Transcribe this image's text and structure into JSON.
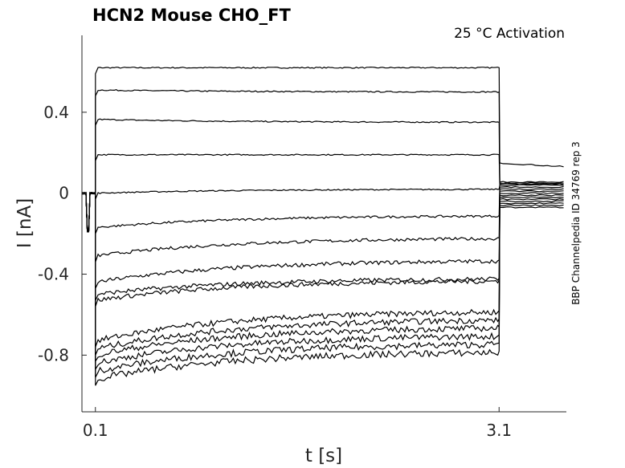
{
  "chart_data": {
    "type": "line",
    "title": "HCN2  Mouse  CHO_FT",
    "subtitle": "25 °C  Activation",
    "xlabel": "t [s]",
    "ylabel": "I [nA]",
    "side_note": "BBP Channelpedia ID 34769 rep 3",
    "xlim": [
      0.0,
      3.6
    ],
    "ylim": [
      -1.08,
      0.78
    ],
    "xticks": [
      0.1,
      3.1
    ],
    "xtick_labels": [
      "0.1",
      "3.1"
    ],
    "yticks": [
      0.4,
      0,
      -0.4,
      -0.8
    ],
    "ytick_labels": [
      "0.4",
      "0",
      "-0.4",
      "-0.8"
    ],
    "grid": false,
    "line_color": "#000000",
    "pulse_start": 0.1,
    "pulse_end": 3.1,
    "sweeps": [
      {
        "start": 0.62,
        "end": 0.62,
        "tail": 0.15
      },
      {
        "start": 0.51,
        "end": 0.5,
        "tail": 0.055
      },
      {
        "start": 0.365,
        "end": 0.35,
        "tail": 0.05
      },
      {
        "start": 0.19,
        "end": 0.19,
        "tail": 0.045
      },
      {
        "start": 0.0,
        "end": 0.02,
        "tail": 0.04
      },
      {
        "start": -0.17,
        "end": -0.11,
        "tail": 0.03
      },
      {
        "start": -0.31,
        "end": -0.22,
        "tail": 0.02
      },
      {
        "start": -0.44,
        "end": -0.33,
        "tail": 0.01
      },
      {
        "start": -0.5,
        "end": -0.42,
        "tail": 0.0
      },
      {
        "start": -0.53,
        "end": -0.43,
        "tail": -0.01
      },
      {
        "start": -0.73,
        "end": -0.58,
        "tail": -0.02
      },
      {
        "start": -0.77,
        "end": -0.62,
        "tail": -0.03
      },
      {
        "start": -0.8,
        "end": -0.66,
        "tail": -0.04
      },
      {
        "start": -0.84,
        "end": -0.7,
        "tail": -0.05
      },
      {
        "start": -0.88,
        "end": -0.74,
        "tail": -0.06
      },
      {
        "start": -0.92,
        "end": -0.78,
        "tail": -0.07
      }
    ]
  }
}
